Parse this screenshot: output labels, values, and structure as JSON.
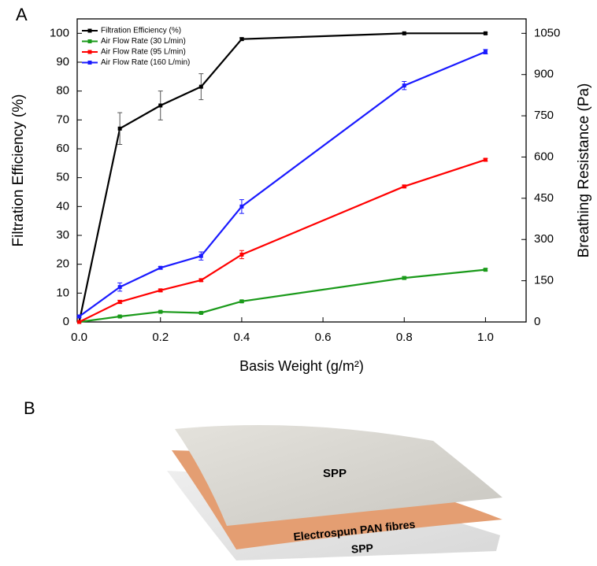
{
  "panel_labels": [
    "A",
    "B"
  ],
  "chart_data": {
    "type": "line",
    "xlabel": "Basis Weight (g/m²)",
    "ylabel": "Filtration Efficiency (%)",
    "y2label": "Breathing Resistance (Pa)",
    "x": [
      0,
      0.1,
      0.2,
      0.3,
      0.4,
      0.8,
      1.0
    ],
    "xlim": [
      -0.005,
      1.1
    ],
    "xticks": [
      {
        "value": 0,
        "label": "0.0"
      },
      0.2,
      0.4,
      0.6,
      0.8,
      {
        "value": 1,
        "label": "1.0"
      }
    ],
    "ylim": [
      0,
      105
    ],
    "yticks": [
      0,
      10,
      20,
      30,
      40,
      50,
      60,
      70,
      80,
      90,
      100
    ],
    "y2lim": [
      0,
      1102.5
    ],
    "y2ticks": [
      0,
      150,
      300,
      450,
      600,
      750,
      900,
      1050
    ],
    "legend": "upper left",
    "series": [
      {
        "name": "Filtration Efficiency (%)",
        "color": "#000000",
        "values": [
          0,
          67,
          75,
          81.5,
          98,
          100,
          100
        ],
        "errors": [
          0,
          5.5,
          5,
          4.5,
          0.5,
          0.3,
          0.3
        ]
      },
      {
        "name": "Air Flow Rate (30 L/min)",
        "color": "#1a9a1a",
        "axis": "y2",
        "values": [
          0,
          20,
          37,
          33,
          75,
          160,
          190
        ],
        "errors": [
          0,
          3,
          3,
          3,
          4,
          5,
          4
        ]
      },
      {
        "name": "Air Flow Rate (95 L/min)",
        "color": "#ff0000",
        "axis": "y2",
        "values": [
          0,
          73,
          115,
          152,
          245,
          493,
          590
        ],
        "errors": [
          0,
          6,
          5,
          5,
          15,
          5,
          5
        ]
      },
      {
        "name": "Air Flow Rate (160 L/min)",
        "color": "#1a1aff",
        "axis": "y2",
        "values": [
          20,
          127,
          197,
          240,
          420,
          860,
          983
        ],
        "errors": [
          3,
          15,
          5,
          15,
          25,
          15,
          8
        ]
      }
    ]
  },
  "diagram": {
    "layers": [
      "SPP",
      "Electrospun PAN fibres",
      "SPP"
    ]
  }
}
